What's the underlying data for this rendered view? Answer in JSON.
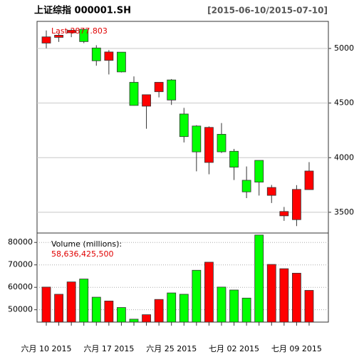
{
  "chart_data": {
    "type": "candlestick",
    "title": "上证综指 000001.SH",
    "date_range": "[2015-06-10/2015-07-10]",
    "last_label": "Last 3877.803",
    "volume_title": "Volume (millions):",
    "volume_last": "58,636,425,500",
    "categories": [
      "六月 10 2015",
      null,
      null,
      null,
      null,
      "六月 17 2015",
      null,
      null,
      null,
      null,
      "六月 25 2015",
      null,
      null,
      null,
      null,
      "七月 02 2015",
      null,
      null,
      null,
      null,
      "七月 09 2015",
      null
    ],
    "open": [
      5049.2,
      5101.4,
      5143.3,
      5174.4,
      5004.4,
      4890.8,
      4966.3,
      4689.9,
      4471.6,
      4604.0,
      4711.8,
      4399.9,
      4289.8,
      3956.2,
      4214.2,
      4058.6,
      3793.0,
      3975.2,
      3654.8,
      3467.4,
      3432.5,
      3707.5
    ],
    "high": [
      5164.6,
      5138.4,
      5178.2,
      5176.8,
      5029.7,
      4985.0,
      4966.7,
      4744.1,
      4577.9,
      4690.2,
      4720.0,
      4456.0,
      4297.5,
      4286.6,
      4317.1,
      4080.3,
      3919.5,
      3975.2,
      3750.5,
      3548.7,
      3748.5,
      3959.2
    ],
    "low": [
      5001.4,
      5059.9,
      5103.4,
      5048.7,
      4842.1,
      4762.1,
      4780.5,
      4476.5,
      4264.8,
      4552.2,
      4483.0,
      4139.5,
      3875.0,
      3847.9,
      4043.0,
      3795.3,
      3629.6,
      3653.0,
      3585.0,
      3421.5,
      3373.5,
      3707.5
    ],
    "close": [
      5106.0,
      5121.6,
      5166.4,
      5063.0,
      4887.4,
      4967.9,
      4785.4,
      4478.4,
      4576.5,
      4690.2,
      4527.8,
      4192.9,
      4053.0,
      4277.2,
      4053.7,
      3912.8,
      3686.9,
      3775.9,
      3727.1,
      3507.2,
      3709.3,
      3877.8
    ],
    "volume": [
      60100,
      56900,
      62400,
      63700,
      55600,
      53900,
      51000,
      45800,
      47800,
      54600,
      57500,
      56900,
      67600,
      71200,
      60100,
      58800,
      55200,
      83300,
      70200,
      68300,
      66300,
      58636.4255
    ],
    "up_color": "#ff0000",
    "down_color": "#00ff00",
    "ylim": [
      3310,
      5248
    ],
    "yticks": [
      3500,
      4000,
      4500,
      5000
    ],
    "volume_ylim": [
      44500,
      84200
    ],
    "volume_ticks": [
      50000,
      60000,
      70000,
      80000
    ],
    "grid": true
  }
}
